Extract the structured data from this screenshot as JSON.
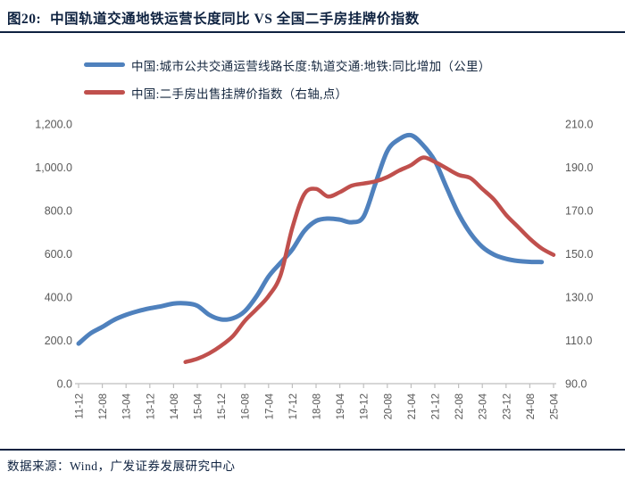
{
  "header": {
    "title_prefix": "图20:",
    "title": "中国轨道交通地铁运营长度同比 VS 全国二手房挂牌价指数"
  },
  "legend": [
    {
      "label": "中国:城市公共交通运营线路长度:轨道交通:地铁:同比增加（公里）",
      "color": "#4F81BD"
    },
    {
      "label": "中国:二手房出售挂牌价指数（右轴,点）",
      "color": "#C0504D"
    }
  ],
  "footer": {
    "source": "数据来源：Wind，广发证券发展研究中心"
  },
  "colors": {
    "blue_series": "#4F81BD",
    "red_series": "#C0504D",
    "axis_text": "#595959",
    "axis_line": "#BFBFBF",
    "title_navy": "#0e2240"
  },
  "chart_data": {
    "type": "line",
    "title": "中国轨道交通地铁运营长度同比 VS 全国二手房挂牌价指数",
    "grid": false,
    "legend_position": "top-left",
    "x": [
      "11-12",
      "12-04",
      "12-08",
      "12-12",
      "13-04",
      "13-08",
      "13-12",
      "14-04",
      "14-08",
      "14-12",
      "15-04",
      "15-08",
      "15-12",
      "16-04",
      "16-08",
      "16-12",
      "17-04",
      "17-08",
      "17-12",
      "18-04",
      "18-08",
      "18-12",
      "19-04",
      "19-08",
      "19-12",
      "20-04",
      "20-08",
      "20-12",
      "21-04",
      "21-08",
      "21-12",
      "22-04",
      "22-08",
      "22-12",
      "23-04",
      "23-08",
      "23-12",
      "24-04",
      "24-08",
      "24-12",
      "25-04"
    ],
    "x_tick_labels": [
      "11-12",
      "12-08",
      "13-04",
      "13-12",
      "14-08",
      "15-04",
      "15-12",
      "16-08",
      "17-04",
      "17-12",
      "18-08",
      "19-04",
      "19-12",
      "20-08",
      "21-04",
      "21-12",
      "22-08",
      "23-04",
      "23-12",
      "24-08",
      "25-04"
    ],
    "left_axis": {
      "min": 0,
      "max": 1200,
      "step": 200,
      "tick_labels": [
        "0.0",
        "200.0",
        "400.0",
        "600.0",
        "800.0",
        "1,000.0",
        "1,200.0"
      ]
    },
    "right_axis": {
      "min": 90,
      "max": 210,
      "step": 20,
      "tick_labels": [
        "90.0",
        "110.0",
        "130.0",
        "150.0",
        "170.0",
        "190.0",
        "210.0"
      ]
    },
    "series": [
      {
        "name": "中国:城市公共交通运营线路长度:轨道交通:地铁:同比增加（公里）",
        "axis": "left",
        "color": "#4F81BD",
        "stroke_width": 5,
        "values": [
          185,
          232,
          262,
          295,
          318,
          335,
          348,
          358,
          370,
          371,
          360,
          318,
          297,
          302,
          335,
          405,
          495,
          558,
          620,
          705,
          752,
          763,
          758,
          746,
          772,
          925,
          1075,
          1130,
          1148,
          1103,
          1030,
          905,
          785,
          695,
          632,
          596,
          577,
          567,
          563,
          562,
          null
        ]
      },
      {
        "name": "中国:二手房出售挂牌价指数（右轴,点）",
        "axis": "right",
        "color": "#C0504D",
        "stroke_width": 4.5,
        "values": [
          null,
          null,
          null,
          null,
          null,
          null,
          null,
          null,
          null,
          100,
          101.5,
          104,
          107.5,
          112,
          119,
          124.5,
          130.5,
          140,
          162,
          177.5,
          180,
          176.5,
          178.5,
          181.5,
          182.5,
          183.5,
          185.5,
          188.5,
          191,
          194.5,
          192.5,
          189.5,
          186.5,
          185,
          180,
          175,
          168,
          162.5,
          157,
          152.5,
          149.5
        ]
      }
    ]
  }
}
